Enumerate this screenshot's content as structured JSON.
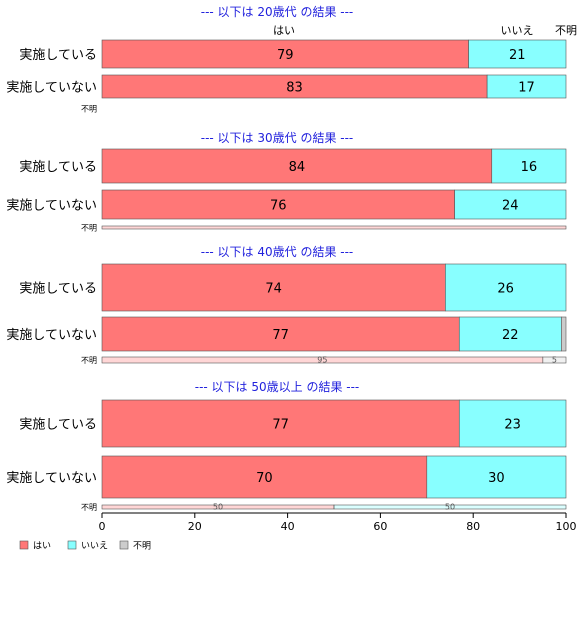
{
  "chart_data": {
    "type": "bar",
    "orientation": "horizontal",
    "stacked": true,
    "percent": true,
    "xlim": [
      0,
      100
    ],
    "xticks": [
      "0",
      "20",
      "40",
      "60",
      "80",
      "100"
    ],
    "legend": {
      "placement": "bottom-left",
      "entries": [
        "はい",
        "いいえ",
        "不明"
      ]
    },
    "series_colors": {
      "はい": "#ff7777",
      "いいえ": "#88ffff",
      "不明": "#cccccc"
    },
    "header_labels": [
      "はい",
      "いいえ",
      "不明"
    ],
    "groups": [
      {
        "title": "--- 以下は 20歳代 の結果 ---",
        "rows": [
          {
            "label": "実施している",
            "values": [
              79,
              21,
              0
            ]
          },
          {
            "label": "実施していない",
            "values": [
              83,
              17,
              0
            ]
          },
          {
            "label": "不明",
            "values": [
              0,
              0,
              0
            ]
          }
        ]
      },
      {
        "title": "--- 以下は 30歳代 の結果 ---",
        "rows": [
          {
            "label": "実施している",
            "values": [
              84,
              16,
              0
            ]
          },
          {
            "label": "実施していない",
            "values": [
              76,
              24,
              0
            ]
          },
          {
            "label": "不明",
            "values": [
              100,
              0,
              0
            ]
          }
        ]
      },
      {
        "title": "--- 以下は 40歳代 の結果 ---",
        "rows": [
          {
            "label": "実施している",
            "values": [
              74,
              26,
              0
            ]
          },
          {
            "label": "実施していない",
            "values": [
              77,
              22,
              1
            ]
          },
          {
            "label": "不明",
            "values": [
              95,
              0,
              5
            ]
          }
        ]
      },
      {
        "title": "--- 以下は 50歳以上 の結果 ---",
        "rows": [
          {
            "label": "実施している",
            "values": [
              77,
              23,
              0
            ]
          },
          {
            "label": "実施していない",
            "values": [
              70,
              30,
              0
            ]
          },
          {
            "label": "不明",
            "values": [
              50,
              50,
              0
            ]
          }
        ]
      }
    ]
  }
}
